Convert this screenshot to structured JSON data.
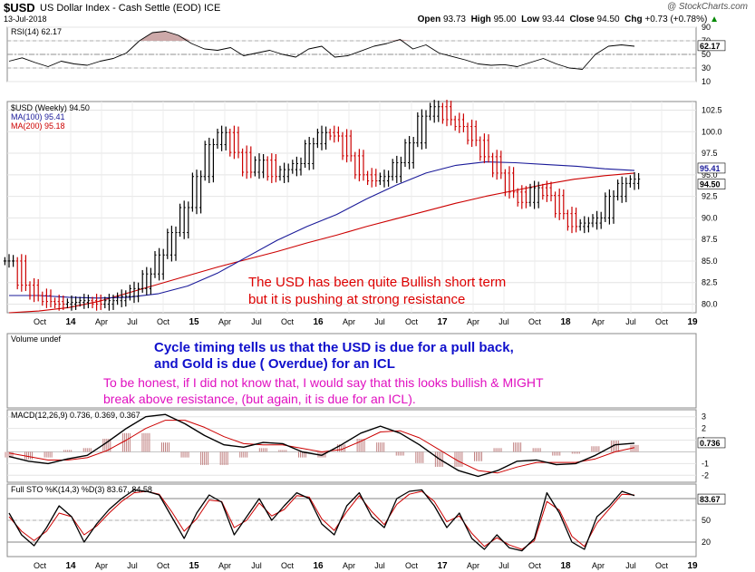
{
  "header": {
    "symbol": "$USD",
    "name": "US Dollar Index - Cash Settle (EOD)  ICE",
    "date": "13-Jul-2018",
    "brand": "@ StockCharts.com",
    "open_label": "Open",
    "open": "93.73",
    "high_label": "High",
    "high": "95.00",
    "low_label": "Low",
    "low": "93.44",
    "close_label": "Close",
    "close": "94.50",
    "chg_label": "Chg",
    "chg": "+0.73 (+0.78%)",
    "chg_arrow": "▲"
  },
  "x_axis": {
    "ticks": [
      "Oct",
      "14",
      "Apr",
      "Jul",
      "Oct",
      "15",
      "Apr",
      "Jul",
      "Oct",
      "16",
      "Apr",
      "Jul",
      "Oct",
      "17",
      "Apr",
      "Jul",
      "Oct",
      "18",
      "Apr",
      "Jul",
      "Oct",
      "19"
    ],
    "bold_ticks": [
      "14",
      "15",
      "16",
      "17",
      "18",
      "19"
    ]
  },
  "annotations": {
    "price_note_1": "The USD has been quite Bullish short term",
    "price_note_2": "but it is pushing at strong resistance",
    "cycle_note_1": "Cycle timing tells us that the USD is due for a pull back,",
    "cycle_note_2": "and Gold is due ( Overdue) for an ICL",
    "honest_note_1": "To be honest, if I did not know that, I would say that this looks bullish & MIGHT",
    "honest_note_2": "break above resistance, (but again,  it is due for an ICL)."
  },
  "colors": {
    "price_up": "#000000",
    "price_down": "#cc0000",
    "ma100": "#1a1a99",
    "ma200": "#cc0000",
    "annotation_red": "#dd0000",
    "annotation_blue": "#1010cc",
    "annotation_magenta": "#e010c0",
    "panel_border": "#888888"
  },
  "chart_data": [
    {
      "type": "line",
      "title": "RSI(14) 62.17",
      "legend": "RSI(14) 62.17",
      "last_value": "62.17",
      "y_ticks": [
        "90",
        "70",
        "50",
        "30",
        "10"
      ],
      "ylim": [
        10,
        90
      ],
      "series": [
        {
          "name": "RSI(14)",
          "values": [
            40,
            45,
            38,
            32,
            40,
            36,
            34,
            40,
            44,
            52,
            70,
            82,
            84,
            78,
            66,
            58,
            56,
            60,
            48,
            52,
            56,
            50,
            46,
            58,
            62,
            46,
            48,
            55,
            62,
            66,
            72,
            58,
            64,
            52,
            47,
            42,
            36,
            34,
            35,
            32,
            38,
            44,
            36,
            30,
            28,
            50,
            62,
            64,
            62
          ]
        }
      ]
    },
    {
      "type": "line",
      "title": "$USD (Weekly) 94.50",
      "legend": "$USD (Weekly) 94.50",
      "y_ticks": [
        "102.5",
        "100.0",
        "97.5",
        "95.0",
        "92.5",
        "90.0",
        "87.5",
        "85.0",
        "82.5",
        "80.0"
      ],
      "ylim": [
        79.0,
        103.5
      ],
      "last_values": {
        "ma100": "95.41",
        "close": "94.50"
      },
      "series": [
        {
          "name": "$USD (Weekly)",
          "values": [
            85.0,
            82.2,
            81.0,
            80.3,
            80.0,
            80.2,
            80.4,
            80.0,
            80.4,
            80.9,
            81.8,
            83.5,
            85.7,
            88.3,
            91.2,
            94.8,
            98.5,
            99.9,
            97.6,
            95.3,
            96.7,
            94.8,
            95.6,
            96.3,
            98.6,
            99.9,
            99.5,
            97.2,
            95.0,
            94.3,
            94.8,
            96.4,
            98.7,
            101.8,
            102.9,
            101.4,
            100.6,
            99.0,
            97.1,
            95.2,
            93.0,
            91.8,
            93.5,
            92.6,
            90.5,
            89.0,
            89.4,
            90.0,
            92.5,
            94.0,
            94.5
          ]
        },
        {
          "name": "MA(100)",
          "legend": "MA(100) 95.41",
          "values": [
            81.0,
            81.0,
            80.8,
            80.7,
            80.8,
            81.2,
            82.1,
            83.6,
            85.5,
            87.4,
            89.0,
            90.4,
            92.2,
            93.8,
            95.2,
            96.1,
            96.5,
            96.4,
            96.2,
            96.0,
            95.7,
            95.5
          ]
        },
        {
          "name": "MA(200)",
          "legend": "MA(200) 95.18",
          "values": [
            79.0,
            79.2,
            79.6,
            80.3,
            81.3,
            82.3,
            83.3,
            84.3,
            85.2,
            86.1,
            87.1,
            88.0,
            89.0,
            89.9,
            90.8,
            91.7,
            92.5,
            93.2,
            93.9,
            94.5,
            94.9,
            95.2
          ]
        }
      ]
    },
    {
      "type": "bar",
      "title": "Volume undef",
      "legend": "Volume undef",
      "series": []
    },
    {
      "type": "line",
      "title": "MACD(12,26,9) 0.736, 0.369, 0.367",
      "legend": "MACD(12,26,9) 0.736, 0.369, 0.367",
      "last_value": "0.736",
      "y_ticks": [
        "3",
        "2",
        "1",
        "-1",
        "-2"
      ],
      "ylim": [
        -2.6,
        3.6
      ],
      "series": [
        {
          "name": "MACD",
          "values": [
            -0.4,
            -0.8,
            -1.0,
            -0.6,
            -0.3,
            0.8,
            2.0,
            3.0,
            3.2,
            2.4,
            1.4,
            0.6,
            0.4,
            0.8,
            0.7,
            0.0,
            -0.3,
            0.6,
            1.6,
            2.2,
            1.6,
            0.6,
            -0.6,
            -1.6,
            -2.1,
            -1.6,
            -0.8,
            -0.7,
            -1.1,
            -1.0,
            -0.3,
            0.6,
            0.74
          ]
        },
        {
          "name": "Signal",
          "values": [
            -0.1,
            -0.4,
            -0.7,
            -0.7,
            -0.5,
            0.1,
            1.0,
            2.0,
            2.7,
            2.7,
            2.1,
            1.3,
            0.7,
            0.6,
            0.6,
            0.3,
            0.0,
            0.2,
            0.9,
            1.7,
            1.8,
            1.2,
            0.2,
            -0.8,
            -1.6,
            -1.8,
            -1.3,
            -0.9,
            -0.9,
            -0.9,
            -0.6,
            0.0,
            0.37
          ]
        }
      ]
    },
    {
      "type": "line",
      "title": "Full STO %K(14,3) %D(3) 83.67, 84.58",
      "legend": "Full STO %K(14,3) %D(3) 83.67, 84.58",
      "last_value": "83.67",
      "y_ticks": [
        "80",
        "50",
        "20"
      ],
      "ylim": [
        0,
        100
      ],
      "series": [
        {
          "name": "%K",
          "values": [
            60,
            30,
            15,
            40,
            70,
            55,
            20,
            45,
            65,
            80,
            92,
            90,
            85,
            55,
            25,
            60,
            85,
            75,
            30,
            55,
            80,
            50,
            70,
            88,
            80,
            45,
            30,
            70,
            88,
            55,
            40,
            80,
            90,
            92,
            70,
            40,
            60,
            25,
            10,
            30,
            12,
            8,
            25,
            88,
            60,
            20,
            10,
            55,
            70,
            90,
            84
          ]
        },
        {
          "name": "%D",
          "values": [
            55,
            35,
            22,
            35,
            60,
            55,
            30,
            42,
            60,
            76,
            88,
            90,
            86,
            62,
            35,
            52,
            78,
            76,
            40,
            50,
            74,
            56,
            65,
            84,
            82,
            52,
            36,
            62,
            84,
            62,
            44,
            72,
            86,
            90,
            76,
            48,
            56,
            32,
            14,
            26,
            16,
            10,
            22,
            76,
            64,
            28,
            14,
            46,
            66,
            86,
            85
          ]
        }
      ]
    }
  ]
}
